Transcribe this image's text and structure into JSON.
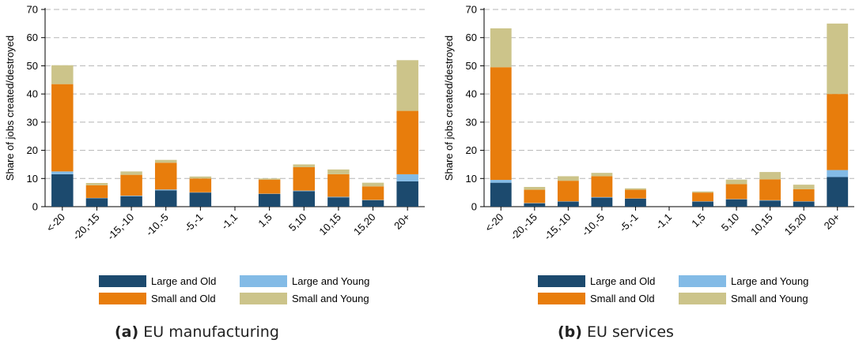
{
  "captions": [
    {
      "tag": "(a)",
      "text": "EU manufacturing"
    },
    {
      "tag": "(b)",
      "text": "EU services"
    }
  ],
  "colors": {
    "Large and Old": "#1c4a6e",
    "Large and Young": "#83bbe6",
    "Small and Old": "#e87d0c",
    "Small and Young": "#ccc48a"
  },
  "chart_data": [
    {
      "type": "bar",
      "stacked": true,
      "ylabel": "Share of jobs created/destroyed",
      "xlabel": "",
      "ylim": [
        0,
        70
      ],
      "yticks": [
        0,
        10,
        20,
        30,
        40,
        50,
        60,
        70
      ],
      "grid": "horizontal dashed",
      "legend": "bottom",
      "categories": [
        "<-20",
        "-20,-15",
        "-15,-10",
        "-10,-5",
        "-5,-1",
        "-1,1",
        "1,5",
        "5,10",
        "10,15",
        "15,20",
        "20+"
      ],
      "series": [
        {
          "name": "Large and Old",
          "values": [
            11.5,
            3.0,
            3.7,
            5.8,
            5.0,
            0,
            4.5,
            5.5,
            3.3,
            2.3,
            9.0
          ]
        },
        {
          "name": "Large and Young",
          "values": [
            1.0,
            0.1,
            0.2,
            0.3,
            0.1,
            0,
            0.1,
            0.2,
            0.2,
            0.1,
            2.5
          ]
        },
        {
          "name": "Small and Old",
          "values": [
            31.0,
            4.5,
            7.4,
            9.5,
            4.9,
            0,
            5.0,
            8.3,
            8.0,
            4.8,
            22.5
          ]
        },
        {
          "name": "Small and Young",
          "values": [
            6.7,
            0.8,
            1.2,
            1.0,
            0.7,
            0,
            0.4,
            1.0,
            1.7,
            1.3,
            18.0
          ]
        }
      ]
    },
    {
      "type": "bar",
      "stacked": true,
      "ylabel": "Share of jobs created/destroyed",
      "xlabel": "",
      "ylim": [
        0,
        70
      ],
      "yticks": [
        0,
        10,
        20,
        30,
        40,
        50,
        60,
        70
      ],
      "grid": "horizontal dashed",
      "legend": "bottom",
      "categories": [
        "<-20",
        "-20,-15",
        "-15,-10",
        "-10,-5",
        "-5,-1",
        "-1,1",
        "1,5",
        "5,10",
        "10,15",
        "15,20",
        "20+"
      ],
      "series": [
        {
          "name": "Large and Old",
          "values": [
            8.5,
            1.2,
            1.8,
            3.2,
            2.8,
            0,
            1.8,
            2.6,
            2.1,
            1.8,
            10.5
          ]
        },
        {
          "name": "Large and Young",
          "values": [
            1.0,
            0.1,
            0.1,
            0.2,
            0.1,
            0,
            0.1,
            0.1,
            0.2,
            0.1,
            2.5
          ]
        },
        {
          "name": "Small and Old",
          "values": [
            40.0,
            4.7,
            7.3,
            7.4,
            3.1,
            0,
            3.1,
            5.3,
            7.4,
            4.3,
            27.0
          ]
        },
        {
          "name": "Small and Young",
          "values": [
            13.8,
            1.0,
            1.6,
            1.2,
            0.5,
            0,
            0.4,
            1.6,
            2.6,
            1.6,
            25.0
          ]
        }
      ]
    }
  ]
}
